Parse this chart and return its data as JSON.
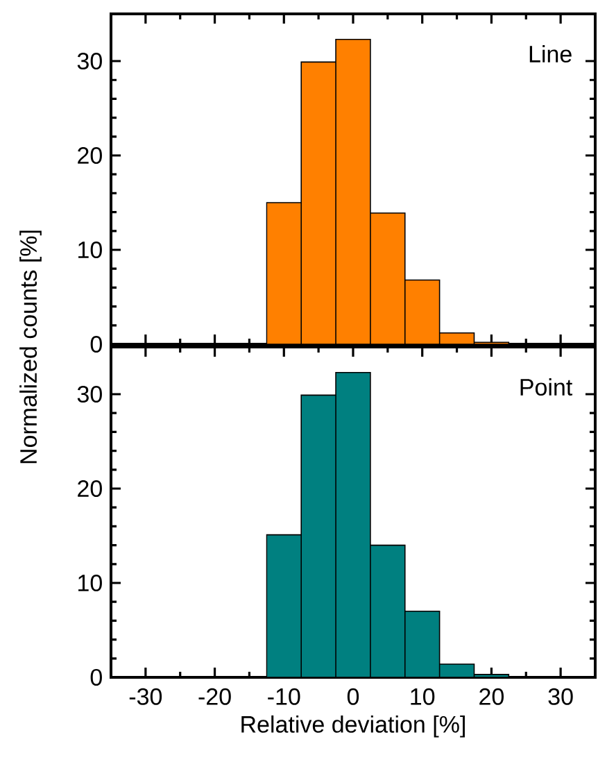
{
  "chart_data": [
    {
      "type": "histogram",
      "bins": [
        -12.5,
        -7.5,
        -2.5,
        2.5,
        7.5,
        12.5,
        17.5,
        22.5
      ],
      "values": [
        15.0,
        29.9,
        32.3,
        13.9,
        6.8,
        1.2,
        0.2
      ],
      "color": "#ff8000",
      "xlim": [
        -35,
        35
      ],
      "xticks": [
        -30,
        -20,
        -10,
        0,
        10,
        20,
        30
      ],
      "ylim": [
        0,
        35
      ],
      "yticks": [
        0,
        10,
        20,
        30
      ],
      "tick_labels": "y",
      "annotations": [
        "Line"
      ],
      "grid": false
    },
    {
      "type": "histogram",
      "bins": [
        -12.5,
        -7.5,
        -2.5,
        2.5,
        7.5,
        12.5,
        17.5,
        22.5
      ],
      "values": [
        15.1,
        29.9,
        32.3,
        14.0,
        7.0,
        1.4,
        0.3
      ],
      "color": "#008080",
      "xlim": [
        -35,
        35
      ],
      "xticks": [
        -30,
        -20,
        -10,
        0,
        10,
        20,
        30
      ],
      "ylim": [
        0,
        35
      ],
      "yticks": [
        0,
        10,
        20,
        30
      ],
      "xlabel": "Relative deviation [%]",
      "ylabel": "Normalized counts [%]",
      "annotations": [
        "Point"
      ],
      "grid": false
    }
  ]
}
